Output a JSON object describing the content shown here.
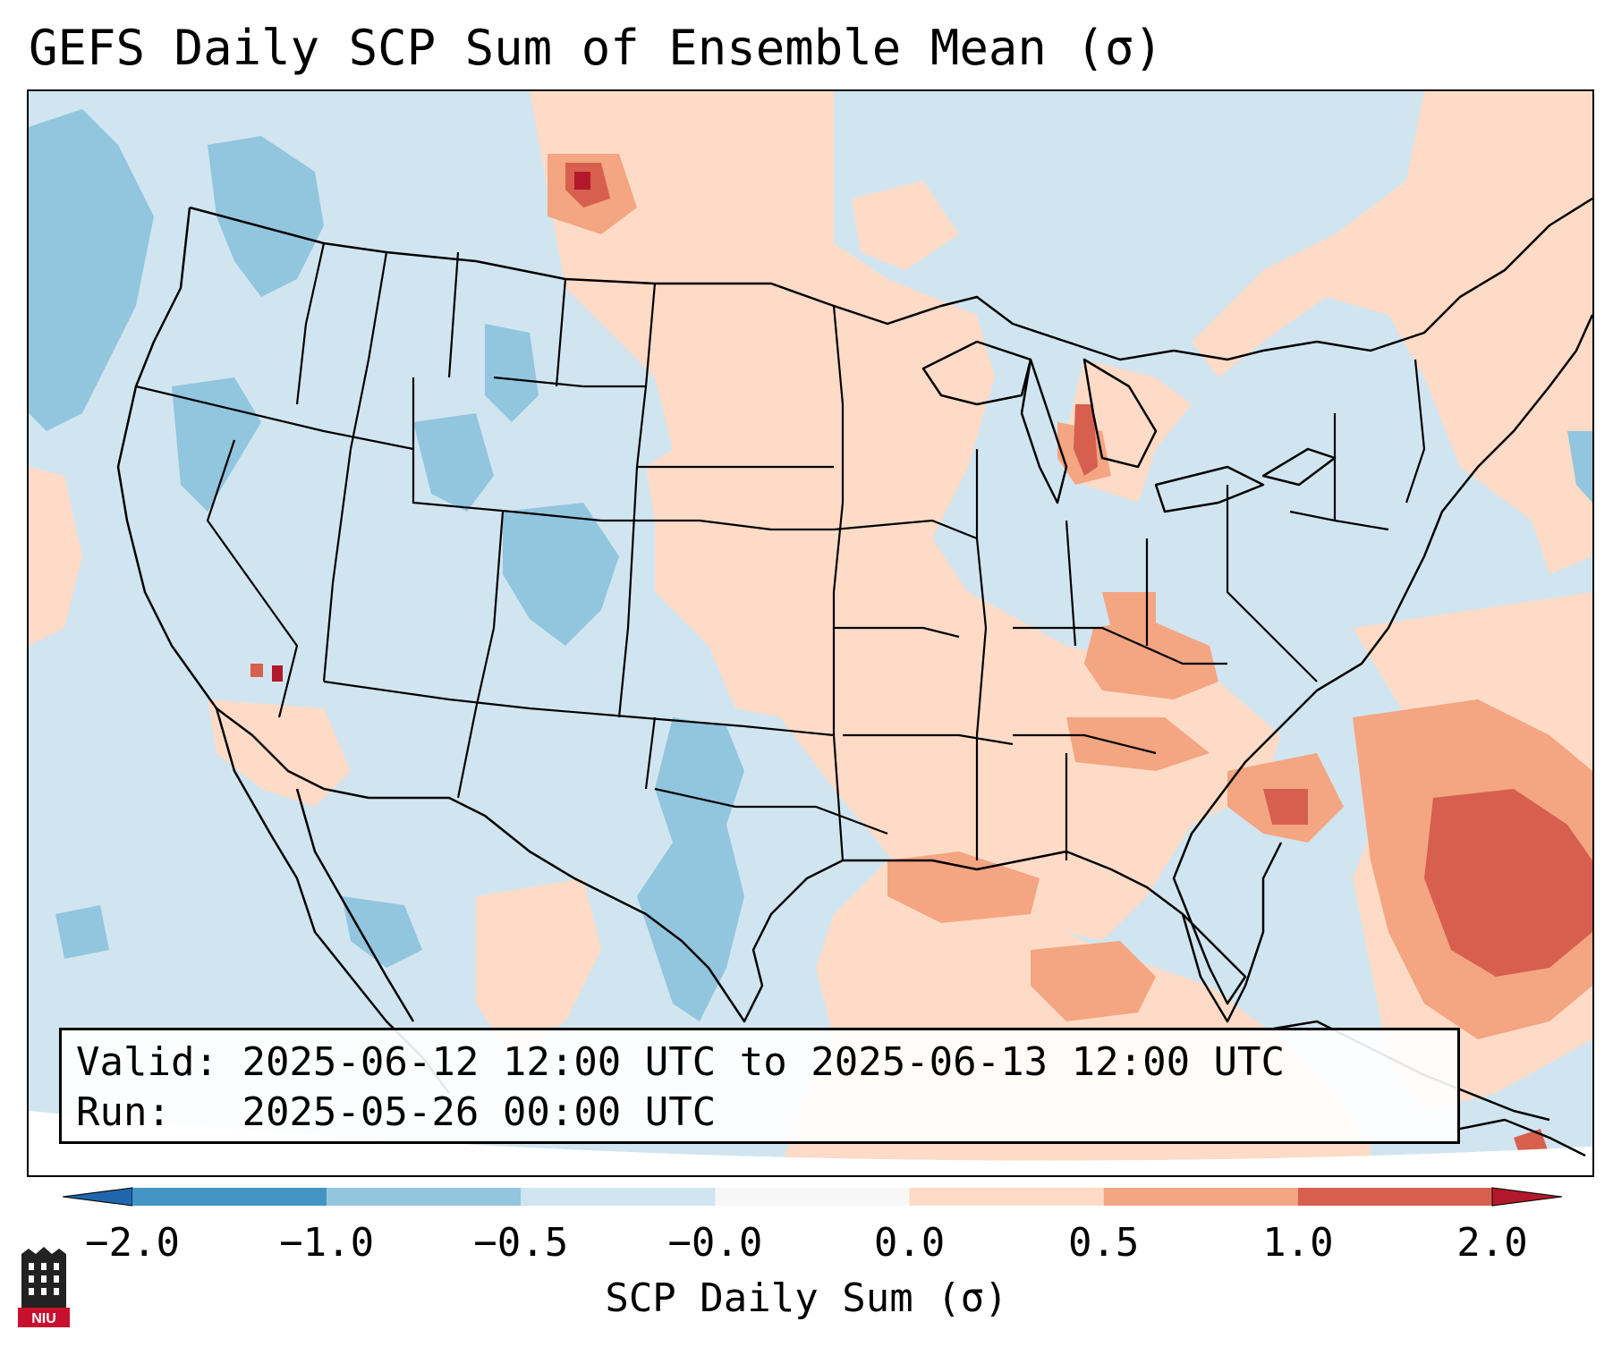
{
  "title": "GEFS Daily SCP Sum of Ensemble Mean (σ)",
  "info": {
    "valid_label": "Valid:",
    "valid_text": "2025-06-12 12:00 UTC to 2025-06-13 12:00 UTC",
    "run_label": "Run:",
    "run_text": "2025-05-26 00:00 UTC"
  },
  "colorbar": {
    "label": "SCP Daily Sum (σ)",
    "ticks": [
      "−2.0",
      "−1.0",
      "−0.5",
      "−0.0",
      "0.0",
      "0.5",
      "1.0",
      "2.0"
    ],
    "bins": [
      {
        "from": -2.0,
        "to": -1.0,
        "color": "#4393c3"
      },
      {
        "from": -1.0,
        "to": -0.5,
        "color": "#92c5de"
      },
      {
        "from": -0.5,
        "to": -0.0,
        "color": "#d1e5f0"
      },
      {
        "from": -0.0,
        "to": 0.0,
        "color": "#f7f7f7"
      },
      {
        "from": 0.0,
        "to": 0.5,
        "color": "#fddbc7"
      },
      {
        "from": 0.5,
        "to": 1.0,
        "color": "#f4a582"
      },
      {
        "from": 1.0,
        "to": 2.0,
        "color": "#d6604d"
      }
    ],
    "under_color": "#2166ac",
    "over_color": "#b2182b"
  },
  "colors": {
    "neg_strong": "#92c5de",
    "neg_weak": "#d1e5f0",
    "pos_weak": "#fddbc7",
    "pos_mid": "#f4a582",
    "pos_strong": "#d6604d",
    "pos_max": "#b2182b",
    "boundary": "#000000"
  },
  "logo": {
    "text": "NIU",
    "color": "#c8102e"
  }
}
